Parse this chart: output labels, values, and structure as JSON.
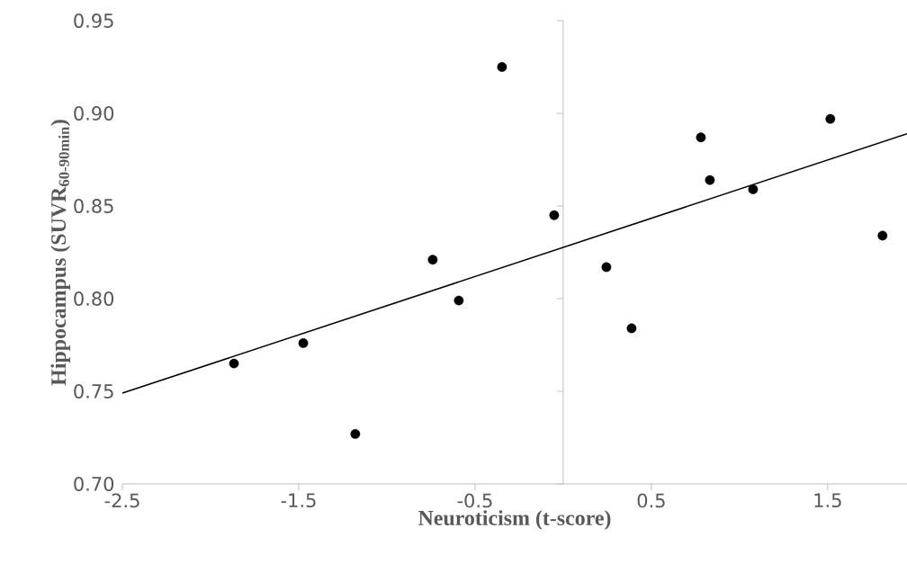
{
  "chart_data": {
    "type": "scatter",
    "xlabel": "Neuroticism (t-score)",
    "ylabel": "Hippocampus (SUVR$_{60-90min}$)",
    "xlim": [
      -2.5,
      1.95
    ],
    "ylim": [
      0.7,
      0.95
    ],
    "xticks": [
      -2.5,
      -1.5,
      -0.5,
      0.5,
      1.5
    ],
    "yticks": [
      {
        "value": 0.7,
        "label": "0.70"
      },
      {
        "value": 0.75,
        "label": "0.75"
      },
      {
        "value": 0.8,
        "label": "0.80"
      },
      {
        "value": 0.85,
        "label": "0.85"
      },
      {
        "value": 0.9,
        "label": "0.90"
      },
      {
        "value": 0.95,
        "label": "0.95"
      }
    ],
    "series": [
      {
        "type": "scatter",
        "marker": "circle",
        "color": "#000000",
        "x": [
          -1.867,
          -1.474,
          -1.179,
          -0.74,
          -0.592,
          -0.347,
          -0.051,
          0.245,
          0.388,
          0.781,
          0.832,
          1.077,
          1.515,
          1.811
        ],
        "values": [
          0.765,
          0.776,
          0.727,
          0.821,
          0.799,
          0.925,
          0.845,
          0.817,
          0.784,
          0.887,
          0.864,
          0.859,
          0.897,
          0.834
        ]
      },
      {
        "type": "line",
        "marker": "none",
        "color": "#000000",
        "x": [
          -2.5,
          1.95
        ],
        "values": [
          0.749,
          0.889
        ]
      }
    ]
  }
}
